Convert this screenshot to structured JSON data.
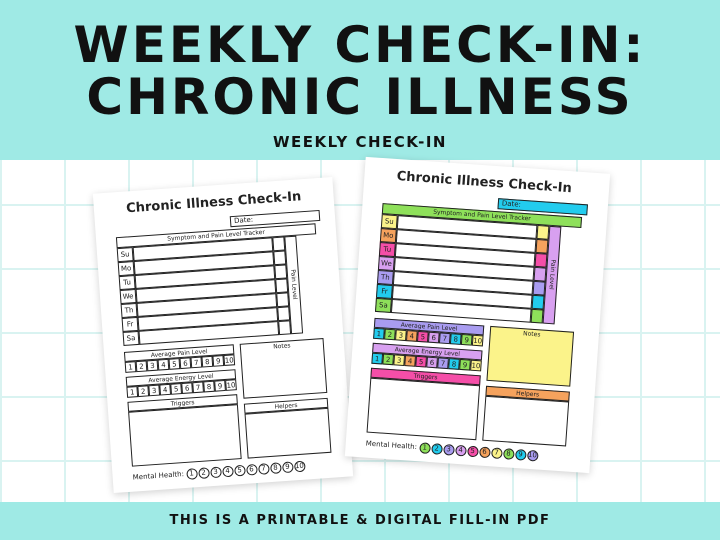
{
  "header": {
    "title_line1": "WEEKLY CHECK-IN:",
    "title_line2": "CHRONIC ILLNESS",
    "subtitle": "WEEKLY CHECK-IN"
  },
  "footer": {
    "text": "THIS IS A PRINTABLE & DIGITAL FILL-IN PDF"
  },
  "colors": {
    "band": "#9feae5",
    "yellow": "#fbf38a",
    "orange": "#f5a25d",
    "pink": "#f54ea8",
    "lavender": "#d8a0f0",
    "purple": "#a99cf0",
    "cyan": "#22ccee",
    "green": "#8ee05a"
  },
  "planner": {
    "title": "Chronic Illness Check-In",
    "date_label": "Date:",
    "tracker_title": "Symptom and Pain Level Tracker",
    "pain_level_label": "Pain Level",
    "days": [
      "Su",
      "Mo",
      "Tu",
      "We",
      "Th",
      "Fr",
      "Sa"
    ],
    "avg_pain_label": "Average Pain Level",
    "avg_energy_label": "Average Energy Level",
    "scale": [
      "1",
      "2",
      "3",
      "4",
      "5",
      "6",
      "7",
      "8",
      "9",
      "10"
    ],
    "notes_label": "Notes",
    "triggers_label": "Triggers",
    "helpers_label": "Helpers",
    "mental_health_label": "Mental Health:",
    "mental_scale": [
      "1",
      "2",
      "3",
      "4",
      "5",
      "6",
      "7",
      "8",
      "9",
      "10"
    ]
  },
  "pages": [
    {
      "variant": "black-and-white"
    },
    {
      "variant": "color"
    }
  ]
}
